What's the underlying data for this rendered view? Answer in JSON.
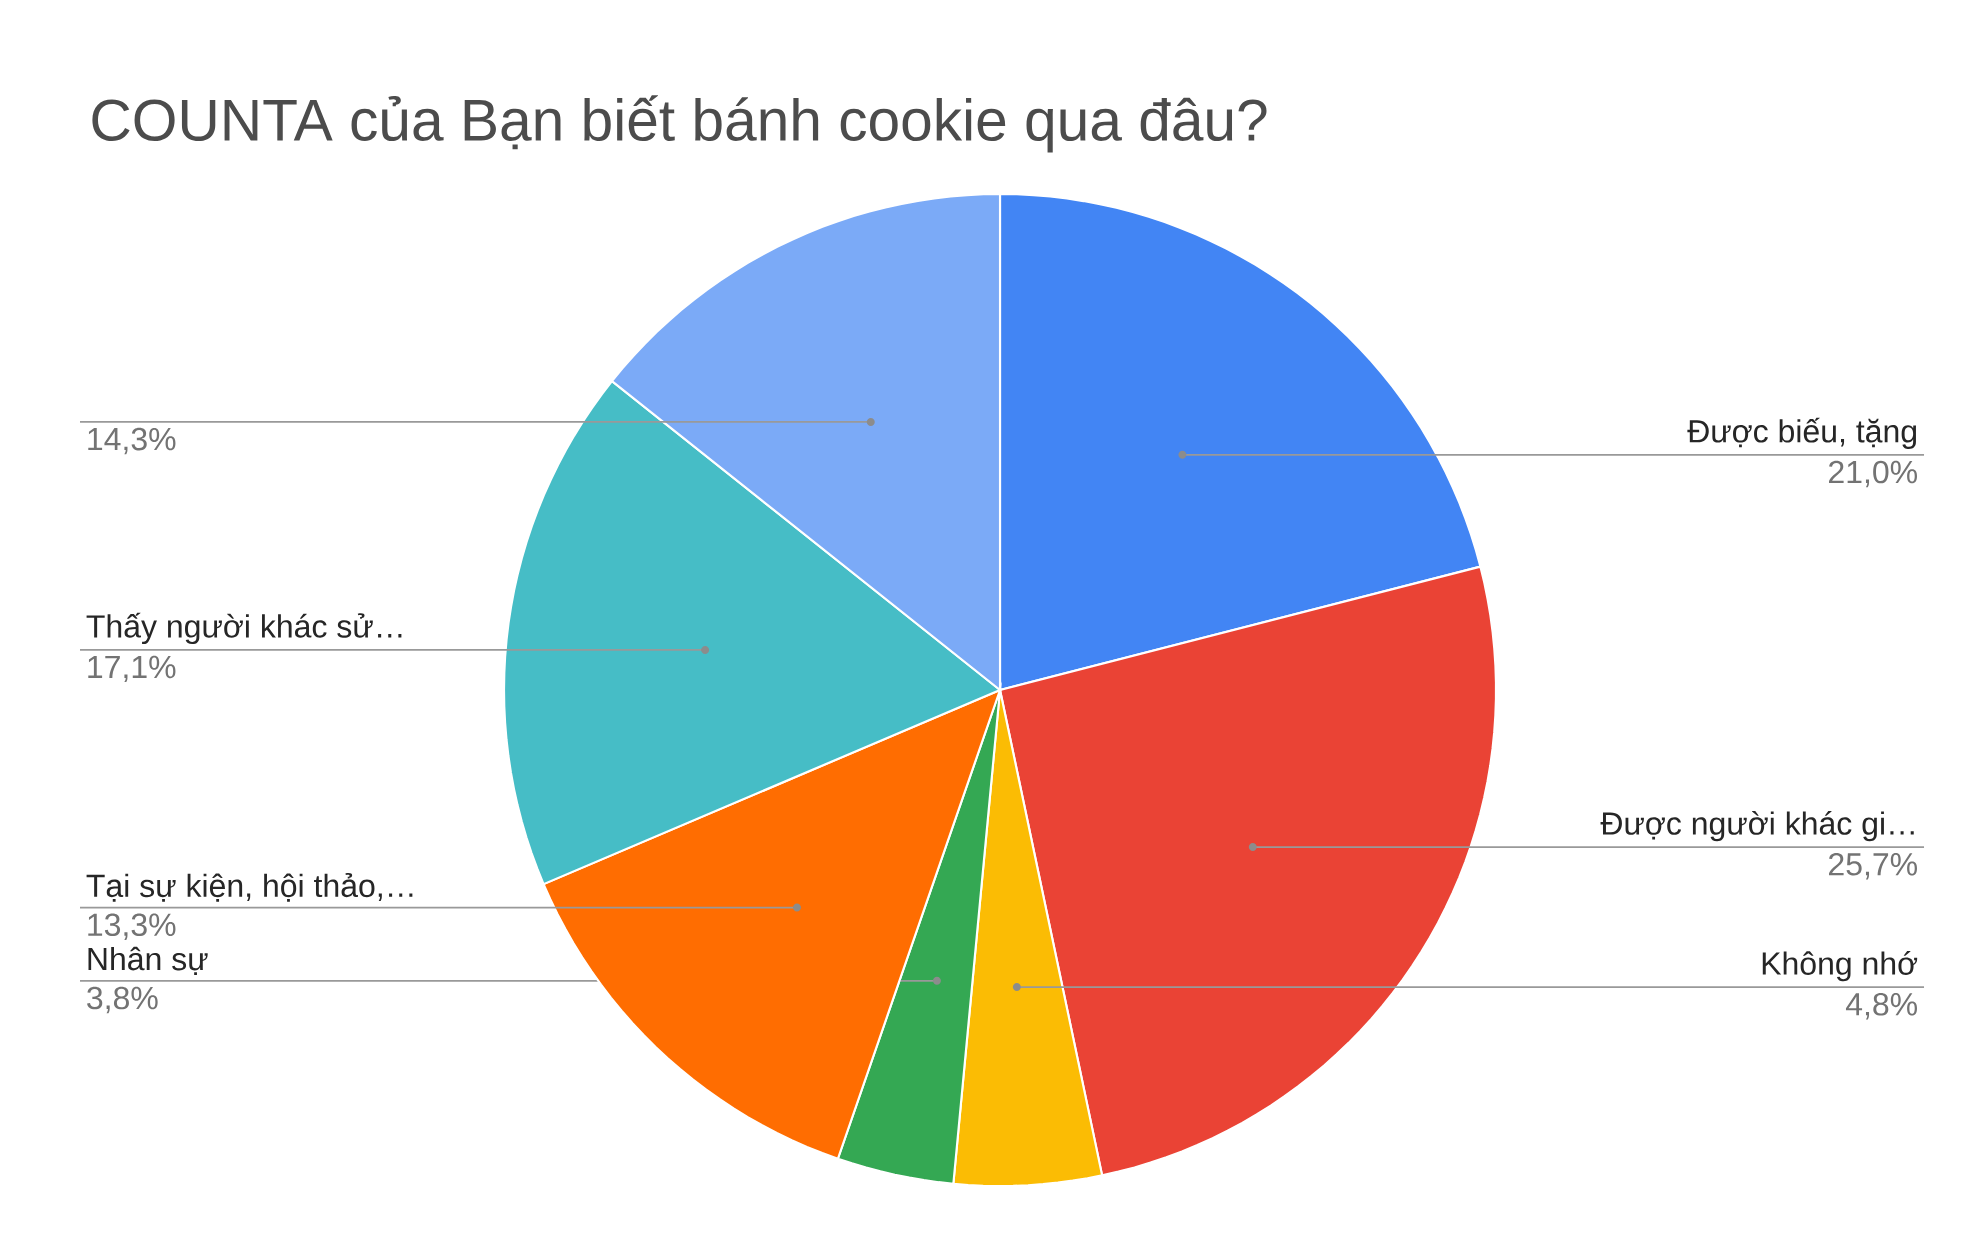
{
  "chart_data": {
    "type": "pie",
    "title": "COUNTA của Bạn biết bánh cookie qua đâu?",
    "categories": [
      "Được biếu, tặng",
      "Được người khác gi…",
      "Không nhớ",
      "Nhân sự",
      "Tại sự kiện, hội thảo,…",
      "Thấy người khác sử…",
      null
    ],
    "values": [
      21.0,
      25.7,
      4.8,
      3.8,
      13.3,
      17.1,
      14.3
    ],
    "value_labels": [
      "21,0%",
      "25,7%",
      "4,8%",
      "3,8%",
      "13,3%",
      "17,1%",
      "14,3%"
    ],
    "colors": [
      "#4285f4",
      "#ea4335",
      "#fbbc04",
      "#34a853",
      "#ff6d01",
      "#46bdc6",
      "#7baaf7"
    ],
    "legend": false
  }
}
